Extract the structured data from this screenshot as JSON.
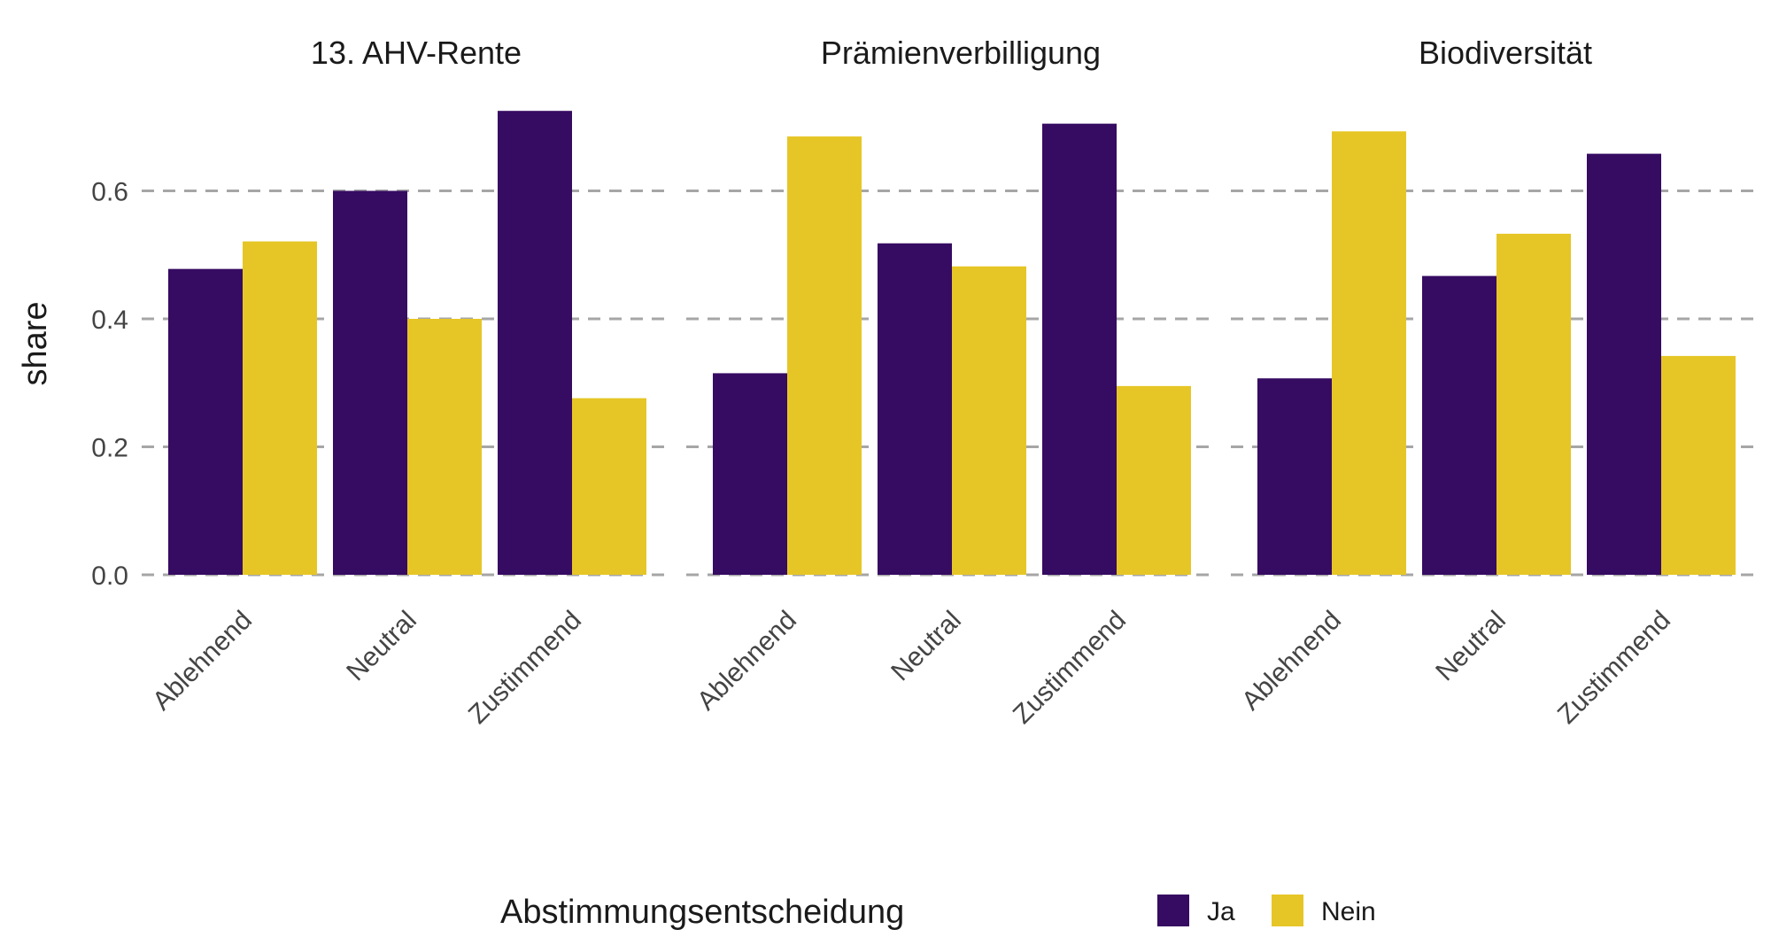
{
  "chart_data": {
    "type": "bar",
    "ylabel": "share",
    "ylim": [
      0,
      0.75
    ],
    "yticks": [
      "0.0",
      "0.2",
      "0.4",
      "0.6"
    ],
    "ytick_values": [
      0,
      0.2,
      0.4,
      0.6
    ],
    "grid": true,
    "categories": [
      "Ablehnend",
      "Neutral",
      "Zustimmend"
    ],
    "legend": {
      "title": "Abstimmungsentscheidung",
      "position": "bottom",
      "entries": [
        {
          "name": "Ja",
          "color": "#360b62"
        },
        {
          "name": "Nein",
          "color": "#e6c626"
        }
      ]
    },
    "panels": [
      {
        "title": "13. AHV-Rente",
        "series": [
          {
            "name": "Ja",
            "values": [
              0.478,
              0.6,
              0.725
            ]
          },
          {
            "name": "Nein",
            "values": [
              0.521,
              0.4,
              0.276
            ]
          }
        ]
      },
      {
        "title": "Prämienverbilligung",
        "series": [
          {
            "name": "Ja",
            "values": [
              0.315,
              0.518,
              0.705
            ]
          },
          {
            "name": "Nein",
            "values": [
              0.685,
              0.482,
              0.295
            ]
          }
        ]
      },
      {
        "title": "Biodiversität",
        "series": [
          {
            "name": "Ja",
            "values": [
              0.307,
              0.467,
              0.658
            ]
          },
          {
            "name": "Nein",
            "values": [
              0.693,
              0.533,
              0.342
            ]
          }
        ]
      }
    ]
  }
}
